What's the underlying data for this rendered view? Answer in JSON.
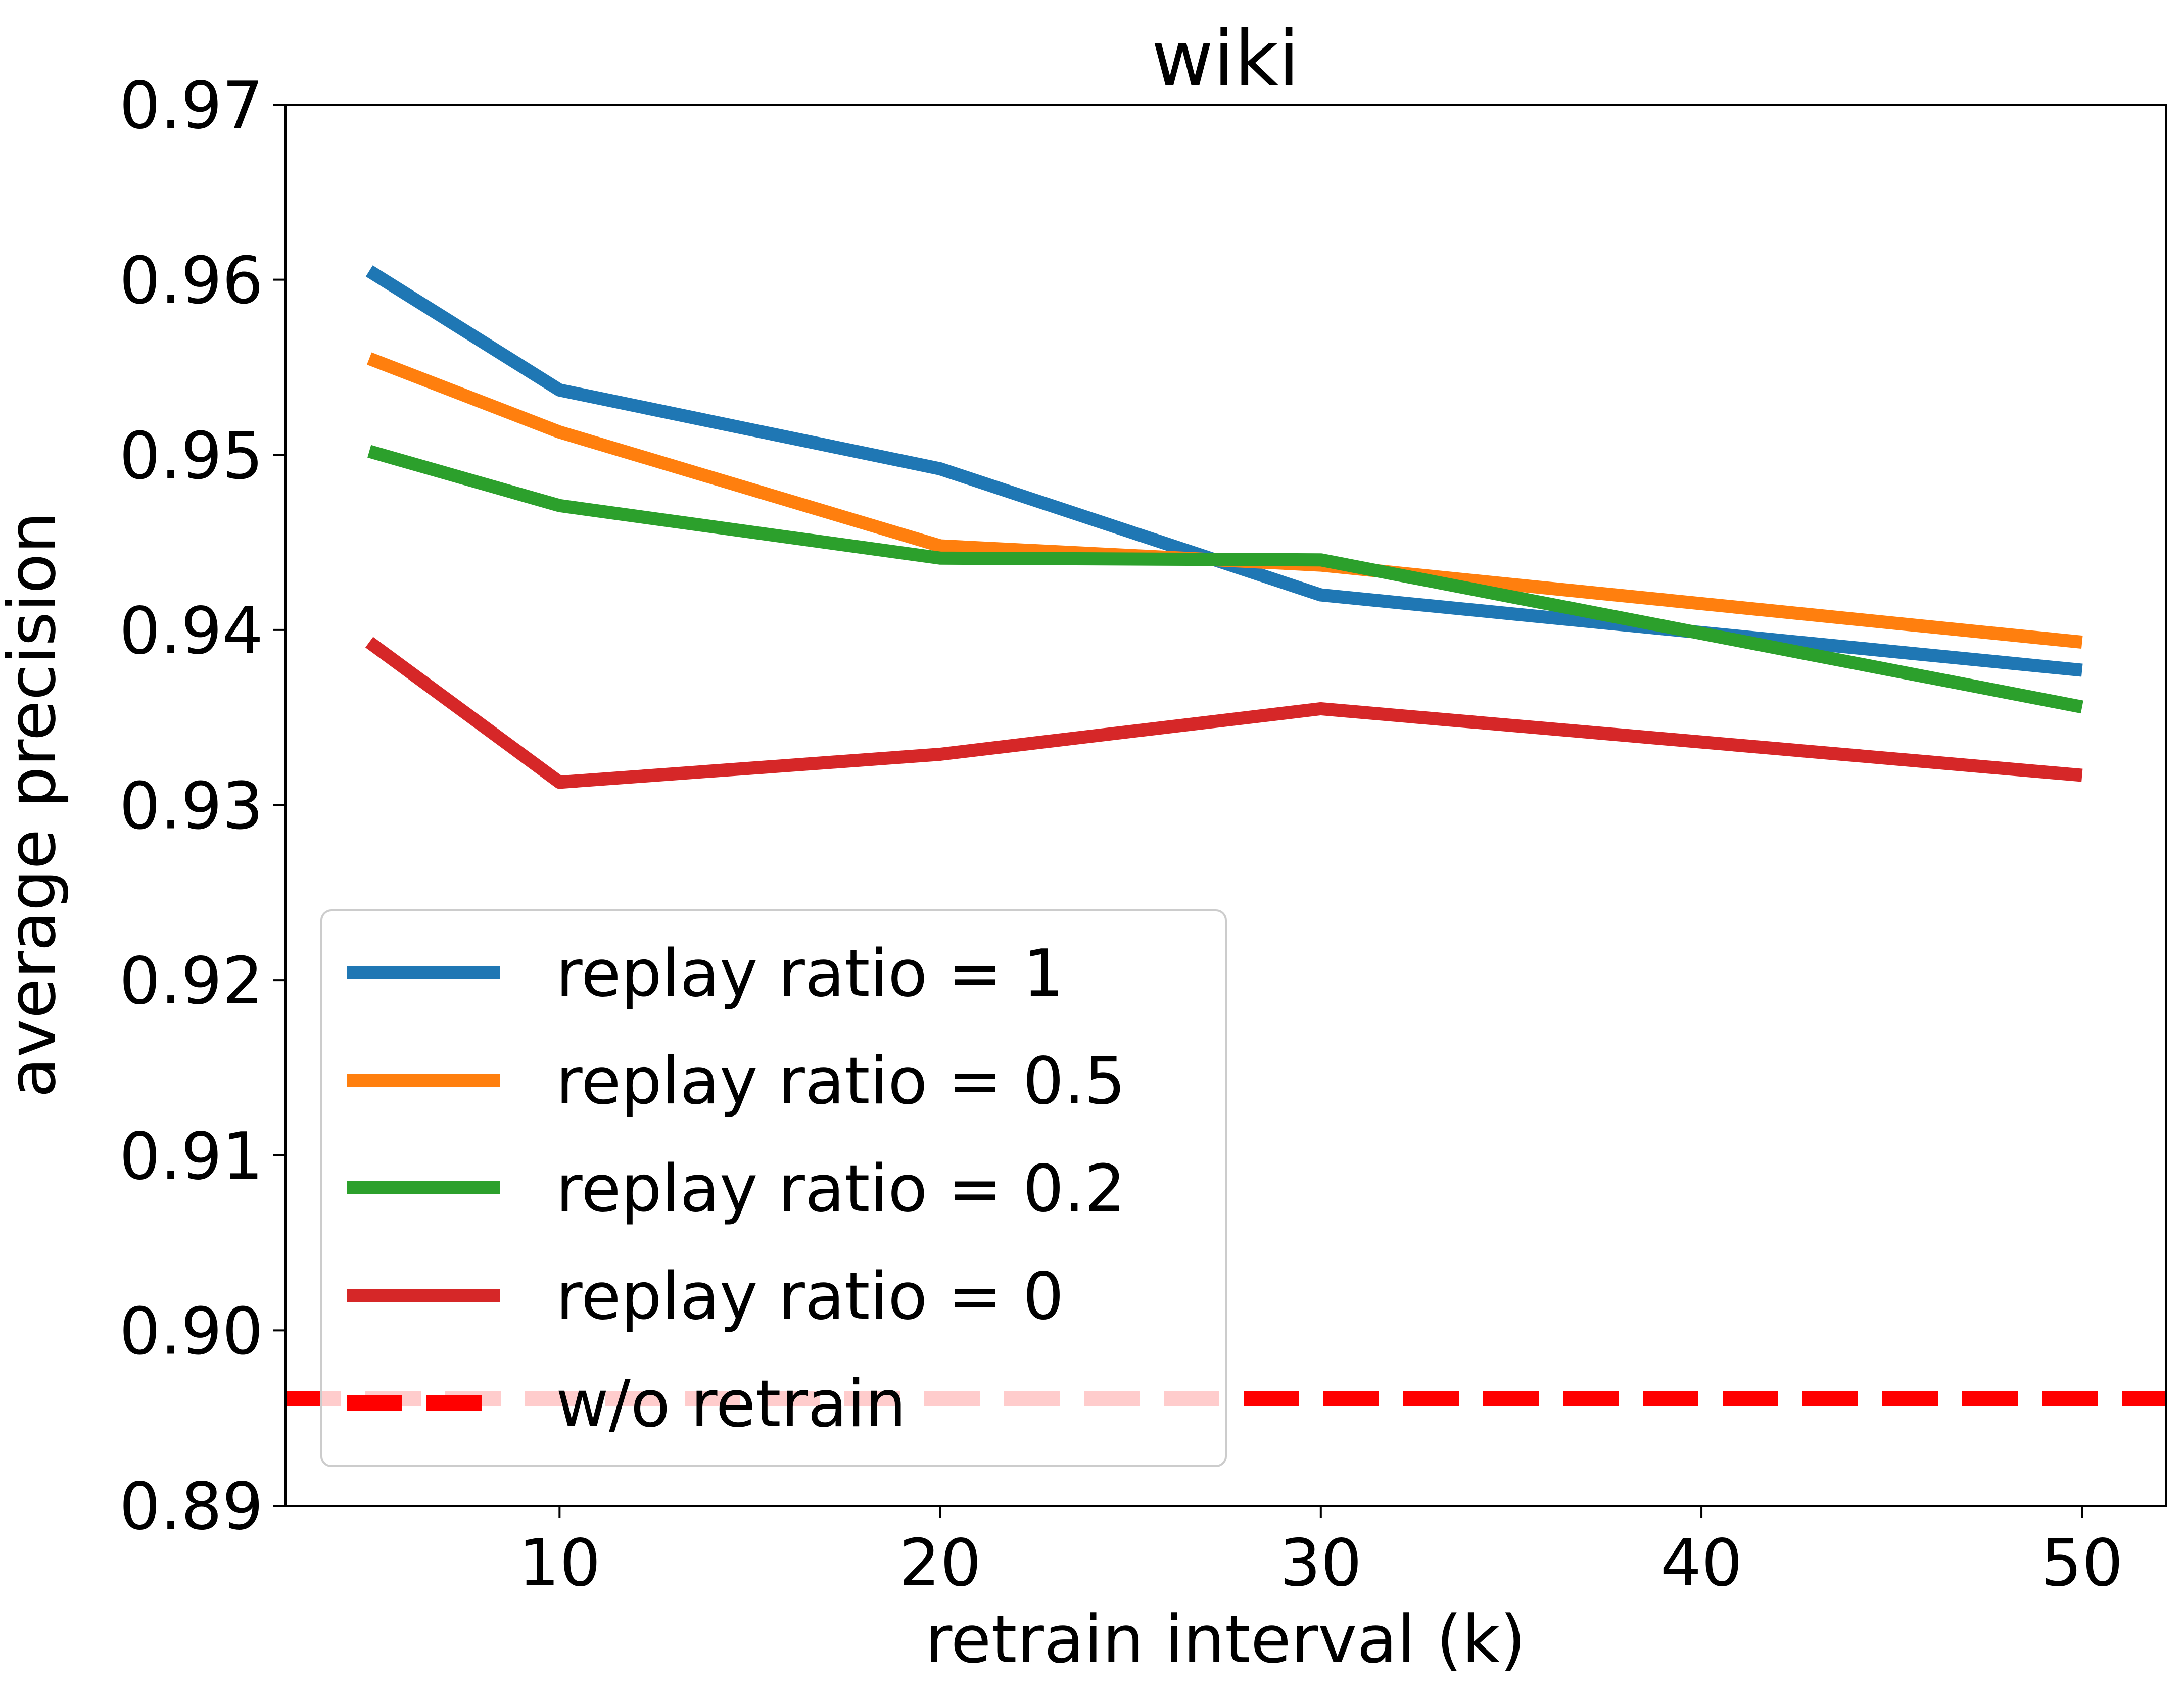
{
  "chart_data": {
    "type": "line",
    "title": "wiki",
    "xlabel": "retrain interval (k)",
    "ylabel": "average precision",
    "xlim": [
      2.8,
      52.2
    ],
    "ylim": [
      0.89,
      0.97
    ],
    "x_ticks": [
      10,
      20,
      30,
      40,
      50
    ],
    "x_tick_labels": [
      "10",
      "20",
      "30",
      "40",
      "50"
    ],
    "y_ticks": [
      0.89,
      0.9,
      0.91,
      0.92,
      0.93,
      0.94,
      0.95,
      0.96,
      0.97
    ],
    "y_tick_labels": [
      "0.89",
      "0.90",
      "0.91",
      "0.92",
      "0.93",
      "0.94",
      "0.95",
      "0.96",
      "0.97"
    ],
    "grid": false,
    "legend_position": "lower-left",
    "x": [
      5,
      10,
      20,
      30,
      50
    ],
    "series": [
      {
        "name": "replay ratio = 1",
        "color": "#1f77b4",
        "values": [
          0.9605,
          0.9537,
          0.9492,
          0.942,
          0.9377
        ]
      },
      {
        "name": "replay ratio = 0.5",
        "color": "#ff7f0e",
        "values": [
          0.9555,
          0.9513,
          0.9448,
          0.9437,
          0.9393
        ]
      },
      {
        "name": "replay ratio = 0.2",
        "color": "#2ca02c",
        "values": [
          0.9502,
          0.9471,
          0.9441,
          0.944,
          0.9356
        ]
      },
      {
        "name": "replay ratio = 0",
        "color": "#d62728",
        "values": [
          0.9393,
          0.9313,
          0.9329,
          0.9355,
          0.9317
        ]
      }
    ],
    "reference_lines": [
      {
        "name": "w/o retrain",
        "y": 0.8961,
        "color": "#ff0000",
        "style": "dashed"
      }
    ]
  }
}
